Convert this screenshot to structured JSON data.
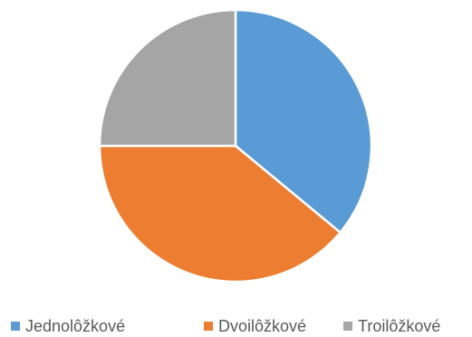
{
  "chart_data": {
    "type": "pie",
    "categories": [
      "Jednolôžkové",
      "Dvoilôžkové",
      "Troilôžkové"
    ],
    "values": [
      36,
      39,
      25
    ],
    "colors": [
      "#5B9BD5",
      "#ED7D31",
      "#A5A5A5"
    ],
    "title": "",
    "legend_position": "bottom"
  }
}
